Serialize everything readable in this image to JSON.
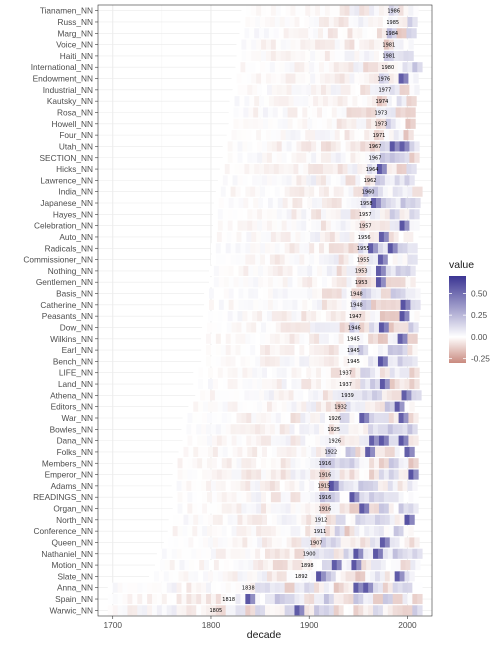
{
  "chart_data": {
    "type": "heatmap",
    "xlabel": "decade",
    "xlim": [
      1685,
      2025
    ],
    "x_ticks": [
      1700,
      1800,
      1900,
      2000
    ],
    "legend": {
      "title": "value",
      "placement": "right",
      "ticks": [
        0.5,
        0.25,
        0.0,
        -0.25
      ],
      "range": [
        -0.3,
        0.7
      ],
      "colors": {
        "low": "#c98a7f",
        "mid": "#ffffff",
        "high": "#3b3593"
      }
    },
    "rows": [
      {
        "name": "Tianamen_NN",
        "year": 1986
      },
      {
        "name": "Russ_NN",
        "year": 1985
      },
      {
        "name": "Marg_NN",
        "year": 1984
      },
      {
        "name": "Voice_NN",
        "year": 1981
      },
      {
        "name": "Haiti_NN",
        "year": 1981
      },
      {
        "name": "International_NN",
        "year": 1980
      },
      {
        "name": "Endowment_NN",
        "year": 1976
      },
      {
        "name": "Industrial_NN",
        "year": 1977
      },
      {
        "name": "Kautsky_NN",
        "year": 1974
      },
      {
        "name": "Rosa_NN",
        "year": 1973
      },
      {
        "name": "Howell_NN",
        "year": 1973
      },
      {
        "name": "Four_NN",
        "year": 1971
      },
      {
        "name": "Utah_NN",
        "year": 1967
      },
      {
        "name": "SECTION_NN",
        "year": 1967
      },
      {
        "name": "Hicks_NN",
        "year": 1964
      },
      {
        "name": "Lawrence_NN",
        "year": 1962
      },
      {
        "name": "India_NN",
        "year": 1960
      },
      {
        "name": "Japanese_NN",
        "year": 1958
      },
      {
        "name": "Hayes_NN",
        "year": 1957
      },
      {
        "name": "Celebration_NN",
        "year": 1957
      },
      {
        "name": "Auto_NN",
        "year": 1956
      },
      {
        "name": "Radicals_NN",
        "year": 1955
      },
      {
        "name": "Commissioner_NN",
        "year": 1955
      },
      {
        "name": "Nothing_NN",
        "year": 1953
      },
      {
        "name": "Gentlemen_NN",
        "year": 1953
      },
      {
        "name": "Basis_NN",
        "year": 1948
      },
      {
        "name": "Catherine_NN",
        "year": 1948
      },
      {
        "name": "Peasants_NN",
        "year": 1947
      },
      {
        "name": "Dow_NN",
        "year": 1946
      },
      {
        "name": "Wilkins_NN",
        "year": 1945
      },
      {
        "name": "Earl_NN",
        "year": 1945
      },
      {
        "name": "Bench_NN",
        "year": 1945
      },
      {
        "name": "LIFE_NN",
        "year": 1937
      },
      {
        "name": "Land_NN",
        "year": 1937
      },
      {
        "name": "Athena_NN",
        "year": 1939
      },
      {
        "name": "Editors_NN",
        "year": 1932
      },
      {
        "name": "War_NN",
        "year": 1926
      },
      {
        "name": "Bowles_NN",
        "year": 1925
      },
      {
        "name": "Dana_NN",
        "year": 1926
      },
      {
        "name": "Folks_NN",
        "year": 1922
      },
      {
        "name": "Members_NN",
        "year": 1916
      },
      {
        "name": "Emperor_NN",
        "year": 1916
      },
      {
        "name": "Adams_NN",
        "year": 1915
      },
      {
        "name": "READINGS_NN",
        "year": 1916
      },
      {
        "name": "Organ_NN",
        "year": 1916
      },
      {
        "name": "North_NN",
        "year": 1912
      },
      {
        "name": "Conference_NN",
        "year": 1911
      },
      {
        "name": "Queen_NN",
        "year": 1907
      },
      {
        "name": "Nathaniel_NN",
        "year": 1900
      },
      {
        "name": "Motion_NN",
        "year": 1898
      },
      {
        "name": "Slate_NN",
        "year": 1892
      },
      {
        "name": "Anna_NN",
        "year": 1838
      },
      {
        "name": "Spain_NN",
        "year": 1818
      },
      {
        "name": "Warwic_NN",
        "year": 1805
      }
    ]
  }
}
